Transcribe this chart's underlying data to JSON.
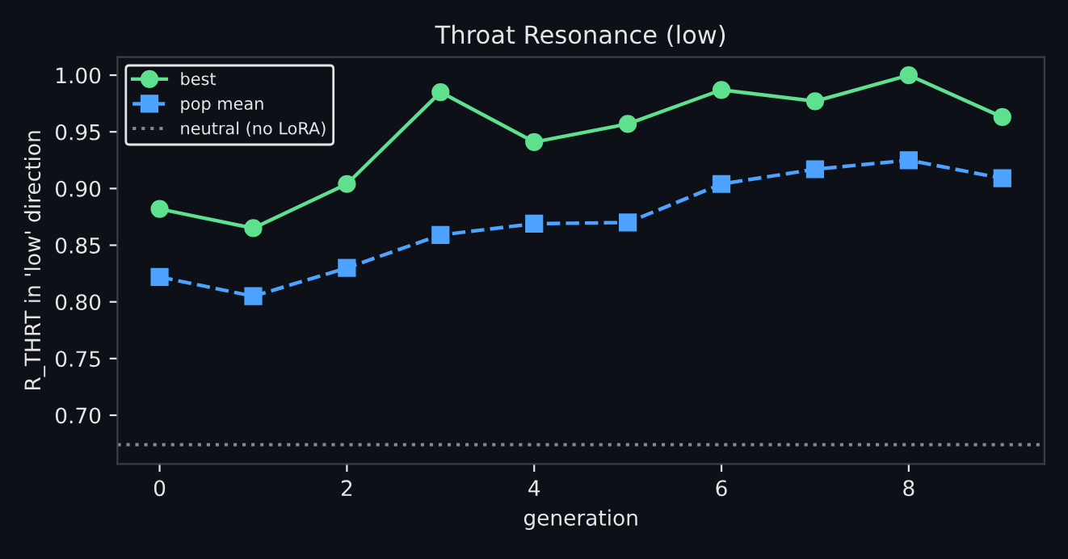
{
  "chart_data": {
    "type": "line",
    "title": "Throat Resonance (low)",
    "xlabel": "generation",
    "ylabel": "R_THRT in 'low' direction",
    "x": [
      0,
      1,
      2,
      3,
      4,
      5,
      6,
      7,
      8,
      9
    ],
    "series": [
      {
        "name": "best",
        "color": "#5ee08f",
        "marker": "circle",
        "line_style": "solid",
        "values": [
          0.882,
          0.865,
          0.904,
          0.985,
          0.941,
          0.957,
          0.987,
          0.977,
          1.0,
          0.963
        ]
      },
      {
        "name": "pop mean",
        "color": "#4da3ff",
        "marker": "square",
        "line_style": "dashed",
        "values": [
          0.822,
          0.805,
          0.83,
          0.859,
          0.869,
          0.87,
          0.904,
          0.917,
          0.925,
          0.909
        ]
      }
    ],
    "ref_lines": [
      {
        "axis": "y",
        "value": 0.674,
        "label": "neutral (no LoRA)",
        "color": "#888888",
        "line_style": "dotted"
      }
    ],
    "xlim": [
      -0.45,
      9.45
    ],
    "ylim": [
      0.657,
      1.016
    ],
    "xticks": [
      0,
      2,
      4,
      6,
      8
    ],
    "yticks": [
      {
        "value": 0.7,
        "label": "0.70"
      },
      {
        "value": 0.75,
        "label": "0.75"
      },
      {
        "value": 0.8,
        "label": "0.80"
      },
      {
        "value": 0.85,
        "label": "0.85"
      },
      {
        "value": 0.9,
        "label": "0.90"
      },
      {
        "value": 0.95,
        "label": "0.95"
      },
      {
        "value": 1.0,
        "label": "1.00"
      }
    ],
    "grid": false,
    "legend": "top left"
  }
}
